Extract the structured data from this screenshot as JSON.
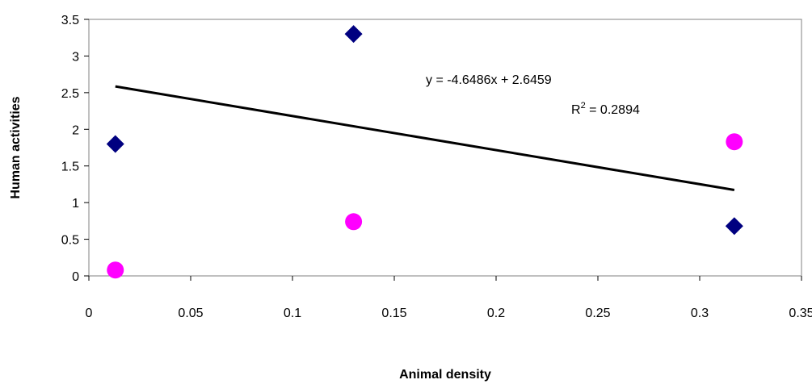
{
  "chart_data": {
    "type": "scatter",
    "xlabel": "Animal density",
    "ylabel": "Human activities",
    "xlim": [
      0,
      0.35
    ],
    "ylim": [
      0,
      3.5
    ],
    "x_ticks": [
      "0",
      "0.05",
      "0.1",
      "0.15",
      "0.2",
      "0.25",
      "0.3",
      "0.35"
    ],
    "y_ticks": [
      "0",
      "0.5",
      "1",
      "1.5",
      "2",
      "2.5",
      "3",
      "3.5"
    ],
    "grid": false,
    "legend": "none",
    "series": [
      {
        "marker": "diamond",
        "color": "#000080",
        "points": [
          {
            "x": 0.013,
            "y": 1.8
          },
          {
            "x": 0.13,
            "y": 3.3
          },
          {
            "x": 0.317,
            "y": 0.68
          }
        ]
      },
      {
        "marker": "circle",
        "color": "#ff00ff",
        "points": [
          {
            "x": 0.013,
            "y": 0.08
          },
          {
            "x": 0.13,
            "y": 0.74
          },
          {
            "x": 0.317,
            "y": 1.83
          }
        ]
      }
    ],
    "trendline": {
      "slope": -4.6486,
      "intercept": 2.6459,
      "x_from": 0.013,
      "x_to": 0.317,
      "color": "#000000"
    },
    "annotations": {
      "equation": "y = -4.6486x + 2.6459",
      "r2_prefix": "R",
      "r2_sup": "2",
      "r2_value": " = 0.2894"
    }
  }
}
